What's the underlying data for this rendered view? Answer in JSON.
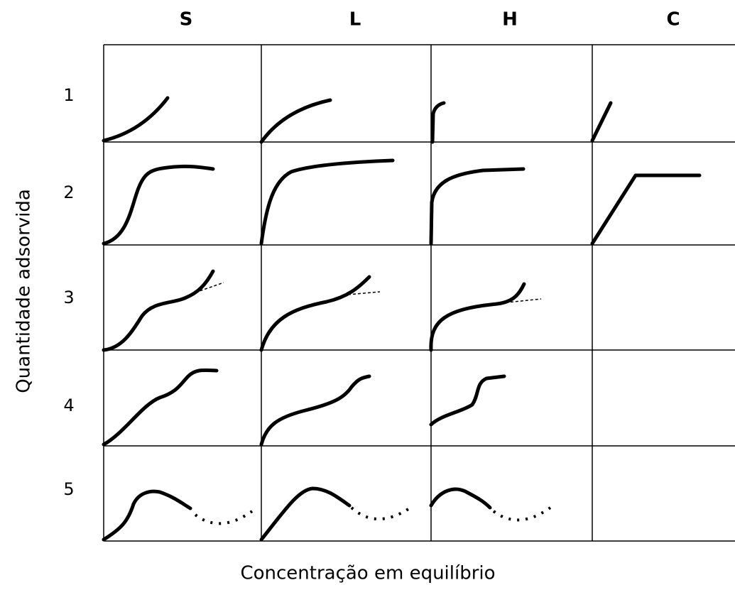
{
  "columns": [
    "S",
    "L",
    "H",
    "C"
  ],
  "rows": [
    "1",
    "2",
    "3",
    "4",
    "5"
  ],
  "y_axis_label": "Quantidade adsorvida",
  "x_axis_label": "Concentração em equilíbrio"
}
